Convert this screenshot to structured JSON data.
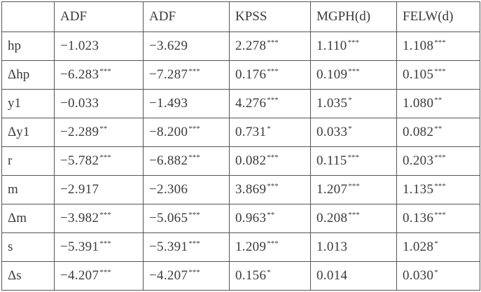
{
  "columns": [
    "",
    "ADF",
    "ADF",
    "KPSS",
    "MGPH(d)",
    "FELW(d)"
  ],
  "rows": [
    {
      "variable": "hp",
      "cells": [
        {
          "v": "−1.023",
          "s": ""
        },
        {
          "v": "−3.629",
          "s": ""
        },
        {
          "v": "2.278",
          "s": "***"
        },
        {
          "v": "1.110",
          "s": "***"
        },
        {
          "v": "1.108",
          "s": "***"
        }
      ]
    },
    {
      "variable": "Δhp",
      "cells": [
        {
          "v": "−6.283",
          "s": "***"
        },
        {
          "v": "−7.287",
          "s": "***"
        },
        {
          "v": "0.176",
          "s": "***"
        },
        {
          "v": "0.109",
          "s": "***"
        },
        {
          "v": "0.105",
          "s": "***"
        }
      ]
    },
    {
      "variable": "y1",
      "cells": [
        {
          "v": "−0.033",
          "s": ""
        },
        {
          "v": "−1.493",
          "s": ""
        },
        {
          "v": "4.276",
          "s": "***"
        },
        {
          "v": "1.035",
          "s": "*"
        },
        {
          "v": "1.080",
          "s": "**"
        }
      ]
    },
    {
      "variable": "Δy1",
      "cells": [
        {
          "v": "−2.289",
          "s": "**"
        },
        {
          "v": "−8.200",
          "s": "***"
        },
        {
          "v": "0.731",
          "s": "*"
        },
        {
          "v": "0.033",
          "s": "*"
        },
        {
          "v": "0.082",
          "s": "**"
        }
      ]
    },
    {
      "variable": "r",
      "cells": [
        {
          "v": "−5.782",
          "s": "***"
        },
        {
          "v": "−6.882",
          "s": "***"
        },
        {
          "v": "0.082",
          "s": "***"
        },
        {
          "v": "0.115",
          "s": "***"
        },
        {
          "v": "0.203",
          "s": "***"
        }
      ]
    },
    {
      "variable": "m",
      "cells": [
        {
          "v": "−2.917",
          "s": ""
        },
        {
          "v": "−2.306",
          "s": ""
        },
        {
          "v": "3.869",
          "s": "***"
        },
        {
          "v": "1.207",
          "s": "***"
        },
        {
          "v": "1.135",
          "s": "***"
        }
      ]
    },
    {
      "variable": "Δm",
      "cells": [
        {
          "v": "−3.982",
          "s": "***"
        },
        {
          "v": "−5.065",
          "s": "***"
        },
        {
          "v": "0.963",
          "s": "**"
        },
        {
          "v": "0.208",
          "s": "***"
        },
        {
          "v": "0.136",
          "s": "***"
        }
      ]
    },
    {
      "variable": "s",
      "cells": [
        {
          "v": "−5.391",
          "s": "***"
        },
        {
          "v": "−5.391",
          "s": "***"
        },
        {
          "v": "1.209",
          "s": "***"
        },
        {
          "v": "1.013",
          "s": ""
        },
        {
          "v": "1.028",
          "s": "*"
        }
      ]
    },
    {
      "variable": "Δs",
      "cells": [
        {
          "v": "−4.207",
          "s": "***"
        },
        {
          "v": "−4.207",
          "s": "***"
        },
        {
          "v": "0.156",
          "s": "*"
        },
        {
          "v": "0.014",
          "s": ""
        },
        {
          "v": "0.030",
          "s": "*"
        }
      ]
    }
  ]
}
